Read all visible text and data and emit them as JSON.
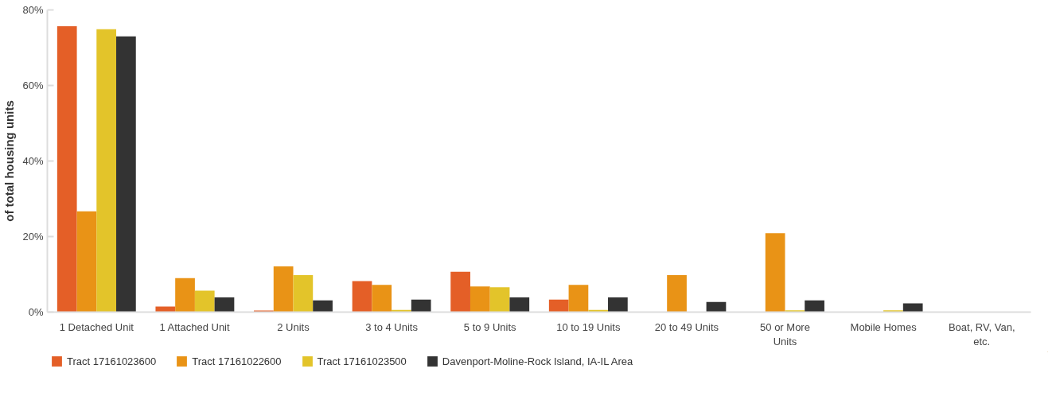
{
  "chart_data": {
    "type": "bar",
    "ylabel": "of total housing units",
    "categories": [
      "1 Detached Unit",
      "1 Attached Unit",
      "2 Units",
      "3 to 4 Units",
      "5 to 9 Units",
      "10 to 19 Units",
      "20 to 49 Units",
      "50 or More Units",
      "Mobile Homes",
      "Boat, RV, Van, etc."
    ],
    "series": [
      {
        "name": "Tract 17161023600",
        "color": "#e45f27",
        "values": [
          75.7,
          1.5,
          0.4,
          8.2,
          10.7,
          3.3,
          0,
          0,
          0,
          0
        ]
      },
      {
        "name": "Tract 17161022600",
        "color": "#e99316",
        "values": [
          26.7,
          9.0,
          12.1,
          7.2,
          6.8,
          7.2,
          9.8,
          20.9,
          0,
          0
        ]
      },
      {
        "name": "Tract 17161023500",
        "color": "#e3c42a",
        "values": [
          74.9,
          5.7,
          9.8,
          0.6,
          6.6,
          0.6,
          0,
          0.5,
          0.5,
          0
        ]
      },
      {
        "name": "Davenport-Moline-Rock Island, IA-IL Area",
        "color": "#333333",
        "values": [
          73.0,
          3.9,
          3.1,
          3.3,
          3.9,
          3.9,
          2.7,
          3.1,
          2.3,
          0
        ]
      }
    ],
    "ylim": [
      0,
      80
    ],
    "yticks": [
      {
        "value": 0,
        "label": "0%"
      },
      {
        "value": 20,
        "label": "20%"
      },
      {
        "value": 40,
        "label": "40%"
      },
      {
        "value": 60,
        "label": "60%"
      },
      {
        "value": 80,
        "label": "80%"
      }
    ],
    "grid": false,
    "legend": "bottom left"
  }
}
